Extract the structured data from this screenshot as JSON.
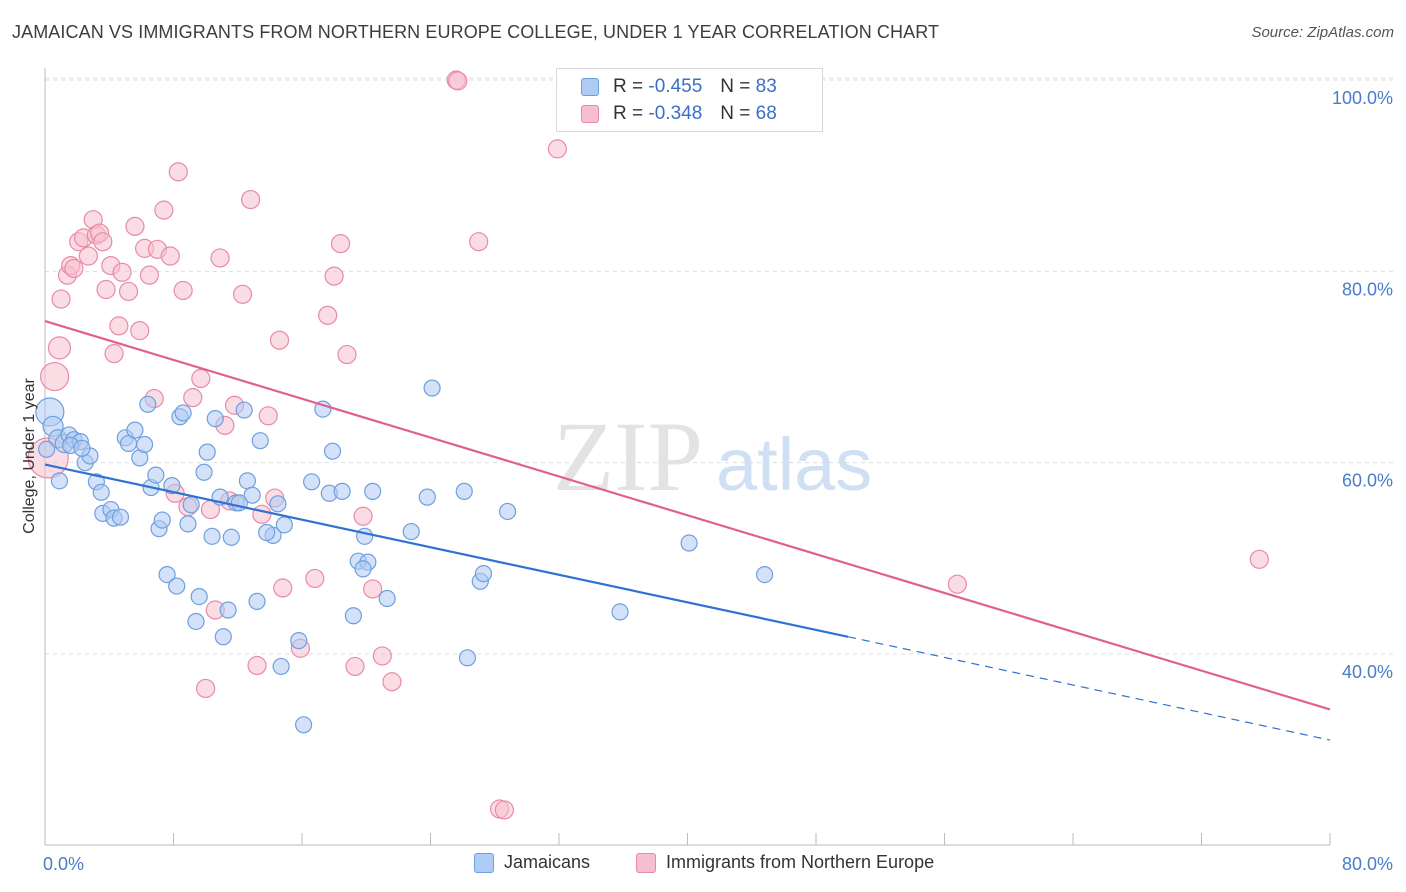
{
  "header": {
    "title": "JAMAICAN VS IMMIGRANTS FROM NORTHERN EUROPE COLLEGE, UNDER 1 YEAR CORRELATION CHART",
    "source": "Source: ZipAtlas.com"
  },
  "watermark": {
    "zip": "ZIP",
    "atlas": "atlas"
  },
  "legend_top": {
    "rows": [
      {
        "r_label": "R =",
        "r_value": "-0.455",
        "n_label": "N =",
        "n_value": "83"
      },
      {
        "r_label": "R =",
        "r_value": "-0.348",
        "n_label": "N =",
        "n_value": "68"
      }
    ]
  },
  "legend_bottom": {
    "items": [
      {
        "label": "Jamaicans"
      },
      {
        "label": "Immigrants from Northern Europe"
      }
    ]
  },
  "colors": {
    "blue_fill": "#aecbf3",
    "blue_stroke": "#6f9fdf",
    "blue_line": "#2f72d1",
    "pink_fill": "#f6bfd0",
    "pink_stroke": "#e98aa7",
    "pink_line": "#e0618d",
    "tick_text": "#4a7cc9",
    "grid": "#dddddd"
  },
  "chart_data": {
    "type": "scatter",
    "title": "JAMAICAN VS IMMIGRANTS FROM NORTHERN EUROPE COLLEGE, UNDER 1 YEAR CORRELATION CHART",
    "xlabel": "",
    "ylabel": "College, Under 1 year",
    "xlim": [
      0,
      80
    ],
    "ylim": [
      20,
      102
    ],
    "x_tick_labels": [
      "0.0%",
      "80.0%"
    ],
    "y_tick_labels": [
      "40.0%",
      "60.0%",
      "80.0%",
      "100.0%"
    ],
    "y_ticks": [
      40,
      60,
      80,
      100
    ],
    "grid": true,
    "legend_position": "top-center",
    "series": [
      {
        "name": "Jamaicans",
        "r": -0.455,
        "n": 83,
        "trend": {
          "x0": 0,
          "y0": 59.8,
          "x1": 50,
          "y1": 41.8,
          "dash_to_x": 80,
          "dash_to_y": 31.0
        },
        "points": [
          [
            0.3,
            65.3,
            14
          ],
          [
            0.5,
            63.8,
            10
          ],
          [
            0.8,
            62.5,
            9
          ],
          [
            1.2,
            62.0,
            9
          ],
          [
            1.5,
            62.9,
            8
          ],
          [
            1.8,
            62.4,
            8
          ],
          [
            2.2,
            62.2,
            8
          ],
          [
            2.5,
            60.0,
            8
          ],
          [
            2.8,
            60.7,
            8
          ],
          [
            3.2,
            58.0,
            8
          ],
          [
            3.5,
            56.9,
            8
          ],
          [
            1.6,
            61.8,
            8
          ],
          [
            0.9,
            58.1,
            8
          ],
          [
            3.6,
            54.7,
            8
          ],
          [
            4.1,
            55.1,
            8
          ],
          [
            4.3,
            54.2,
            8
          ],
          [
            4.7,
            54.3,
            8
          ],
          [
            5.0,
            62.6,
            8
          ],
          [
            5.2,
            62.0,
            8
          ],
          [
            5.6,
            63.4,
            8
          ],
          [
            5.9,
            60.5,
            8
          ],
          [
            6.2,
            61.9,
            8
          ],
          [
            6.4,
            66.1,
            8
          ],
          [
            6.6,
            57.4,
            8
          ],
          [
            6.9,
            58.7,
            8
          ],
          [
            7.1,
            53.1,
            8
          ],
          [
            7.3,
            54.0,
            8
          ],
          [
            7.6,
            48.3,
            8
          ],
          [
            7.9,
            57.6,
            8
          ],
          [
            8.2,
            47.1,
            8
          ],
          [
            8.4,
            64.8,
            8
          ],
          [
            8.6,
            65.2,
            8
          ],
          [
            8.9,
            53.6,
            8
          ],
          [
            9.1,
            55.6,
            8
          ],
          [
            9.4,
            43.4,
            8
          ],
          [
            9.6,
            46.0,
            8
          ],
          [
            9.9,
            59.0,
            8
          ],
          [
            10.1,
            61.1,
            8
          ],
          [
            10.4,
            52.3,
            8
          ],
          [
            10.6,
            64.6,
            8
          ],
          [
            10.9,
            56.4,
            8
          ],
          [
            11.1,
            41.8,
            8
          ],
          [
            11.4,
            44.6,
            8
          ],
          [
            11.6,
            52.2,
            8
          ],
          [
            11.9,
            55.8,
            8
          ],
          [
            12.1,
            55.8,
            8
          ],
          [
            12.4,
            65.5,
            8
          ],
          [
            12.6,
            58.1,
            8
          ],
          [
            12.9,
            56.6,
            8
          ],
          [
            13.2,
            45.5,
            8
          ],
          [
            13.4,
            62.3,
            8
          ],
          [
            14.2,
            52.4,
            8
          ],
          [
            14.5,
            55.7,
            8
          ],
          [
            14.7,
            38.7,
            8
          ],
          [
            14.9,
            53.5,
            8
          ],
          [
            15.8,
            41.4,
            8
          ],
          [
            16.1,
            32.6,
            8
          ],
          [
            16.6,
            58.0,
            8
          ],
          [
            17.3,
            65.6,
            8
          ],
          [
            17.7,
            56.8,
            8
          ],
          [
            17.9,
            61.2,
            8
          ],
          [
            18.5,
            57.0,
            8
          ],
          [
            19.2,
            44.0,
            8
          ],
          [
            19.5,
            49.7,
            8
          ],
          [
            19.9,
            52.3,
            8
          ],
          [
            20.1,
            49.6,
            8
          ],
          [
            20.4,
            57.0,
            8
          ],
          [
            19.8,
            48.9,
            8
          ],
          [
            21.3,
            45.8,
            8
          ],
          [
            22.8,
            52.8,
            8
          ],
          [
            23.8,
            56.4,
            8
          ],
          [
            24.1,
            67.8,
            8
          ],
          [
            26.1,
            57.0,
            8
          ],
          [
            26.3,
            39.6,
            8
          ],
          [
            27.1,
            47.6,
            8
          ],
          [
            27.3,
            48.4,
            8
          ],
          [
            28.8,
            54.9,
            8
          ],
          [
            35.8,
            44.4,
            8
          ],
          [
            40.1,
            51.6,
            8
          ],
          [
            44.8,
            48.3,
            8
          ],
          [
            0.1,
            61.4,
            8
          ],
          [
            2.3,
            61.5,
            8
          ],
          [
            13.8,
            52.7,
            8
          ]
        ]
      },
      {
        "name": "Immigrants from Northern Europe",
        "r": -0.348,
        "n": 68,
        "trend": {
          "x0": 0,
          "y0": 74.8,
          "x1": 80,
          "y1": 34.2
        },
        "points": [
          [
            0.2,
            60.5,
            20
          ],
          [
            0.6,
            69.0,
            14
          ],
          [
            0.9,
            72.0,
            11
          ],
          [
            1.0,
            77.1,
            9
          ],
          [
            1.4,
            79.6,
            9
          ],
          [
            1.6,
            80.6,
            9
          ],
          [
            1.8,
            80.3,
            9
          ],
          [
            2.1,
            83.1,
            9
          ],
          [
            2.4,
            83.5,
            9
          ],
          [
            2.7,
            81.6,
            9
          ],
          [
            3.0,
            85.4,
            9
          ],
          [
            3.2,
            83.8,
            9
          ],
          [
            3.4,
            84.0,
            9
          ],
          [
            3.6,
            83.1,
            9
          ],
          [
            3.8,
            78.1,
            9
          ],
          [
            4.1,
            80.6,
            9
          ],
          [
            4.3,
            71.4,
            9
          ],
          [
            4.6,
            74.3,
            9
          ],
          [
            4.8,
            79.9,
            9
          ],
          [
            5.2,
            77.9,
            9
          ],
          [
            5.6,
            84.7,
            9
          ],
          [
            5.9,
            73.8,
            9
          ],
          [
            6.2,
            82.4,
            9
          ],
          [
            6.5,
            79.6,
            9
          ],
          [
            6.8,
            66.7,
            9
          ],
          [
            7.0,
            82.3,
            9
          ],
          [
            7.4,
            86.4,
            9
          ],
          [
            7.8,
            81.6,
            9
          ],
          [
            8.1,
            56.8,
            9
          ],
          [
            8.3,
            90.4,
            9
          ],
          [
            8.6,
            78.0,
            9
          ],
          [
            8.9,
            55.4,
            9
          ],
          [
            9.2,
            66.8,
            9
          ],
          [
            9.7,
            68.8,
            9
          ],
          [
            10.0,
            36.4,
            9
          ],
          [
            10.3,
            55.1,
            9
          ],
          [
            10.6,
            44.6,
            9
          ],
          [
            10.9,
            81.4,
            9
          ],
          [
            11.2,
            63.9,
            9
          ],
          [
            11.5,
            56.0,
            9
          ],
          [
            11.8,
            66.0,
            9
          ],
          [
            12.3,
            77.6,
            9
          ],
          [
            12.8,
            87.5,
            9
          ],
          [
            13.2,
            38.8,
            9
          ],
          [
            13.5,
            54.6,
            9
          ],
          [
            13.9,
            64.9,
            9
          ],
          [
            14.3,
            56.3,
            9
          ],
          [
            14.6,
            72.8,
            9
          ],
          [
            14.8,
            46.9,
            9
          ],
          [
            15.9,
            40.6,
            9
          ],
          [
            16.8,
            47.9,
            9
          ],
          [
            17.6,
            75.4,
            9
          ],
          [
            18.0,
            79.5,
            9
          ],
          [
            18.4,
            82.9,
            9
          ],
          [
            18.8,
            71.3,
            9
          ],
          [
            19.3,
            38.7,
            9
          ],
          [
            19.8,
            54.4,
            9
          ],
          [
            20.4,
            46.8,
            9
          ],
          [
            21.0,
            39.8,
            9
          ],
          [
            21.6,
            37.1,
            9
          ],
          [
            25.6,
            100.0,
            9
          ],
          [
            25.7,
            99.9,
            9
          ],
          [
            27.0,
            83.1,
            9
          ],
          [
            28.3,
            23.8,
            9
          ],
          [
            28.6,
            23.7,
            9
          ],
          [
            31.9,
            92.8,
            9
          ],
          [
            56.8,
            47.3,
            9
          ],
          [
            75.6,
            49.9,
            9
          ]
        ]
      }
    ]
  }
}
